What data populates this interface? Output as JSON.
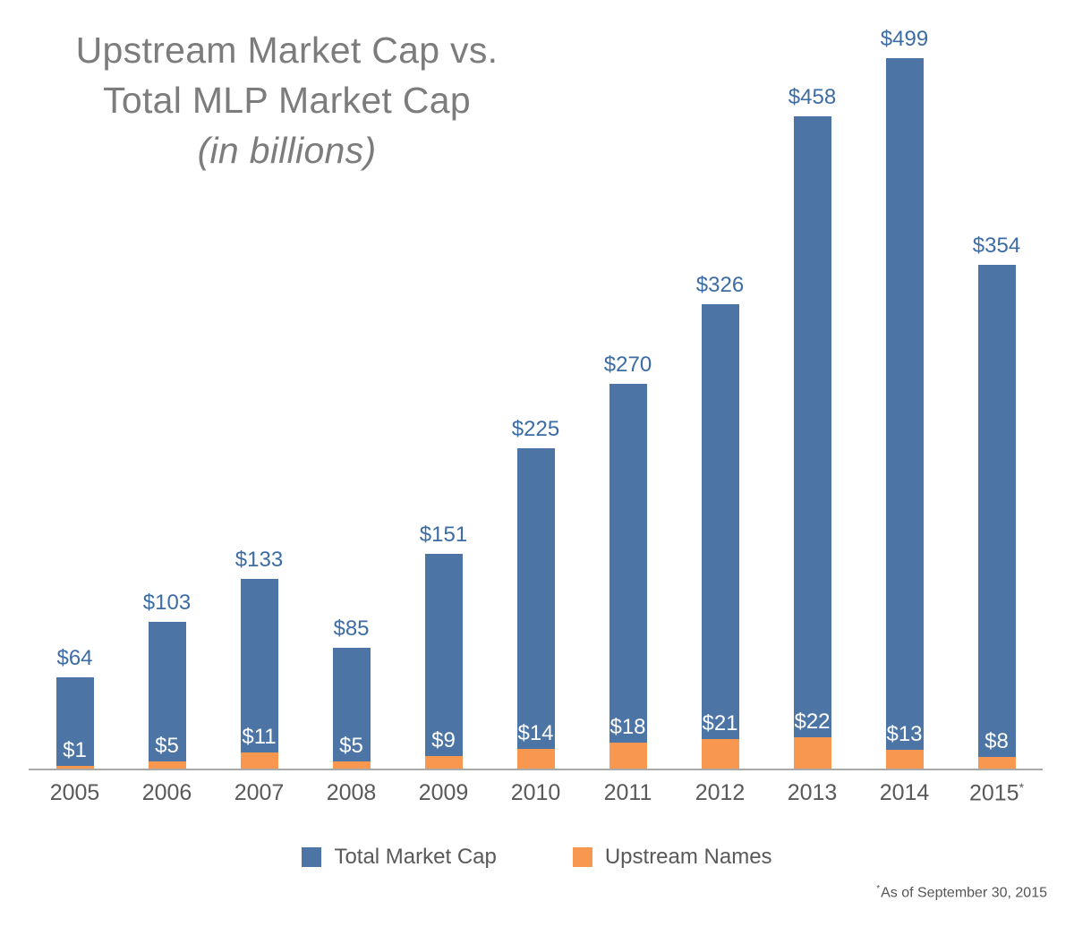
{
  "title": {
    "line1": "Upstream Market Cap vs.",
    "line2": "Total MLP Market Cap",
    "line3": "(in billions)"
  },
  "footnote": {
    "marker": "*",
    "text": "As of September 30, 2015"
  },
  "colors": {
    "total_bar": "#4c74a4",
    "upstream_bar": "#f79750",
    "value_label": "#3c6ca4",
    "axis_line": "#a9a9a9",
    "tick_label": "#595959",
    "title_text": "#7c7c7c"
  },
  "legend": {
    "items": [
      {
        "label": "Total Market Cap",
        "color": "#4c74a4"
      },
      {
        "label": "Upstream Names",
        "color": "#f79750"
      }
    ]
  },
  "chart_data": {
    "type": "bar",
    "stacked": true,
    "title": "Upstream Market Cap vs. Total MLP Market Cap (in billions)",
    "units": "billions USD",
    "categories": [
      "2005",
      "2006",
      "2007",
      "2008",
      "2009",
      "2010",
      "2011",
      "2012",
      "2013",
      "2014",
      "2015*"
    ],
    "series": [
      {
        "name": "Total Market Cap",
        "color": "#4c74a4",
        "values": [
          64,
          103,
          133,
          85,
          151,
          225,
          270,
          326,
          458,
          499,
          354
        ],
        "labels": [
          "$64",
          "$103",
          "$133",
          "$85",
          "$151",
          "$225",
          "$270",
          "$326",
          "$458",
          "$499",
          "$354"
        ]
      },
      {
        "name": "Upstream Names",
        "color": "#f79750",
        "values": [
          1,
          5,
          11,
          5,
          9,
          14,
          18,
          21,
          22,
          13,
          8
        ],
        "labels": [
          "$1",
          "$5",
          "$11",
          "$5",
          "$9",
          "$14",
          "$18",
          "$21",
          "$22",
          "$13",
          "$8"
        ]
      }
    ],
    "stack_note": "Upstream Names is the bottom (orange) portion of each bar; the full bar height equals Total Market Cap.",
    "ylim": [
      0,
      510
    ],
    "grid": false,
    "y_axis_visible": false,
    "legend_position": "bottom",
    "footnote": "*As of September 30, 2015"
  }
}
